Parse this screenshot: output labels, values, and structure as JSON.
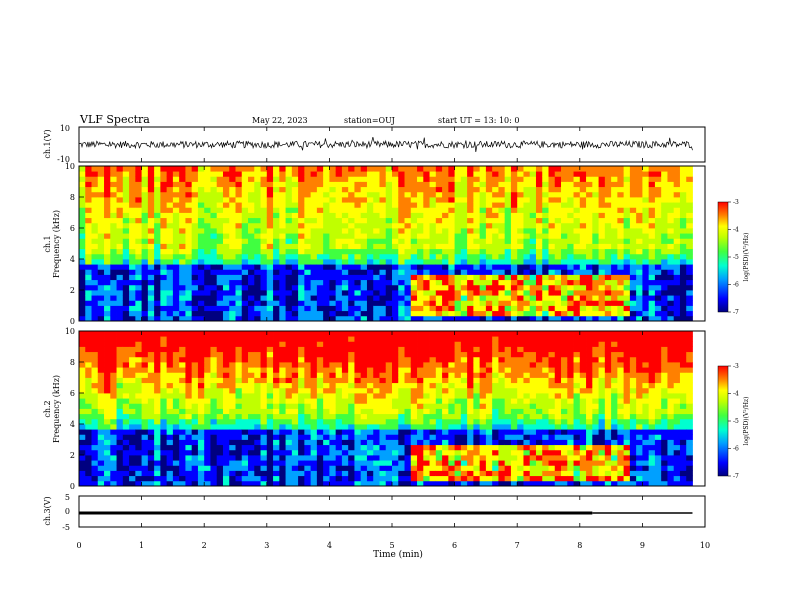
{
  "header": {
    "title": "VLF Spectra",
    "date": "May 22, 2023",
    "station": "station=OUJ",
    "start": "start UT =  13: 10: 0"
  },
  "colors": {
    "background": "#ffffff",
    "axis": "#000000",
    "colormap": [
      "#000080",
      "#0000ff",
      "#00a0ff",
      "#00ffd0",
      "#40ff40",
      "#c0ff00",
      "#ffff00",
      "#ff8000",
      "#ff0000"
    ]
  },
  "chart_data": [
    {
      "type": "line",
      "name": "ch1-waveform",
      "ylabel": "ch.1(V)",
      "ylim": [
        -10,
        10
      ],
      "yticks": [
        "10",
        "-10"
      ],
      "xlim": [
        0,
        10
      ],
      "trace_level": 0,
      "trace_range": [
        -2,
        2
      ]
    },
    {
      "type": "heatmap",
      "name": "ch1-spectrogram",
      "ylabel": "ch.1\nFrequency (kHz)",
      "ylabel_lines": [
        "ch.1",
        "Frequency (kHz)"
      ],
      "ylim": [
        0,
        10
      ],
      "yticks": [
        "0",
        "2",
        "4",
        "6",
        "8",
        "10"
      ],
      "xlim": [
        0,
        9.8
      ],
      "colorbar": {
        "label": "log(PSD)(V²/Hz)",
        "range": [
          -7,
          -3
        ],
        "ticks": [
          "-3",
          "-4",
          "-5",
          "-6",
          "-7"
        ]
      },
      "features": {
        "enhanced_band_time_min": [
          5.3,
          8.8
        ],
        "enhanced_band_freq_khz": [
          0.5,
          3.0
        ]
      }
    },
    {
      "type": "heatmap",
      "name": "ch2-spectrogram",
      "ylabel": "ch.2\nFrequency (kHz)",
      "ylabel_lines": [
        "ch.2",
        "Frequency (kHz)"
      ],
      "ylim": [
        0,
        10
      ],
      "yticks": [
        "0",
        "2",
        "4",
        "6",
        "8",
        "10"
      ],
      "xlim": [
        0,
        9.8
      ],
      "colorbar": {
        "label": "log(PSD)(V²/Hz)",
        "range": [
          -7,
          -3
        ],
        "ticks": [
          "-3",
          "-4",
          "-5",
          "-6",
          "-7"
        ]
      },
      "features": {
        "enhanced_band_time_min": [
          5.3,
          8.8
        ],
        "enhanced_band_freq_khz": [
          0.5,
          2.8
        ]
      }
    },
    {
      "type": "line",
      "name": "ch3-waveform",
      "ylabel": "ch.3(V)",
      "ylim": [
        -5,
        5
      ],
      "yticks": [
        "5",
        "0",
        "-5"
      ],
      "xlim": [
        0,
        10
      ],
      "series": [
        {
          "x": [
            0,
            8.2
          ],
          "y": [
            -0.5,
            -0.5
          ]
        },
        {
          "x": [
            8.2,
            9.8
          ],
          "y": [
            -0.5,
            -0.5
          ]
        }
      ]
    }
  ],
  "xaxis": {
    "label": "Time (min)",
    "ticks": [
      "0",
      "1",
      "2",
      "3",
      "4",
      "5",
      "6",
      "7",
      "8",
      "9",
      "10"
    ]
  }
}
